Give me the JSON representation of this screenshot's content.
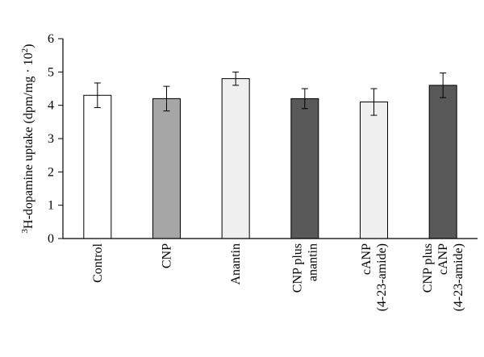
{
  "chart_data": {
    "type": "bar",
    "categories": [
      {
        "lines": [
          "Control"
        ]
      },
      {
        "lines": [
          "CNP"
        ]
      },
      {
        "lines": [
          "Anantin"
        ]
      },
      {
        "lines": [
          "CNP plus",
          "anantin"
        ]
      },
      {
        "lines": [
          "cANP",
          "(4-23-amide)"
        ]
      },
      {
        "lines": [
          "CNP plus",
          "cANP",
          "(4-23-amide)"
        ]
      }
    ],
    "values": [
      4.3,
      4.2,
      4.8,
      4.2,
      4.1,
      4.6
    ],
    "errors": [
      0.37,
      0.37,
      0.2,
      0.3,
      0.4,
      0.37
    ],
    "bar_colors": [
      "#ffffff",
      "#a6a6a6",
      "#efefef",
      "#595959",
      "#efefef",
      "#595959"
    ],
    "bar_stroke": "#000000",
    "ylabel": {
      "superscript": "3",
      "main": "H-dopamine uptake (dpm/mg · 10",
      "power": "2",
      "close": ")"
    },
    "ylim": [
      0,
      6
    ],
    "yticks": [
      "0",
      "1",
      "2",
      "3",
      "4",
      "5",
      "6"
    ],
    "grid": false,
    "legend": "none"
  }
}
